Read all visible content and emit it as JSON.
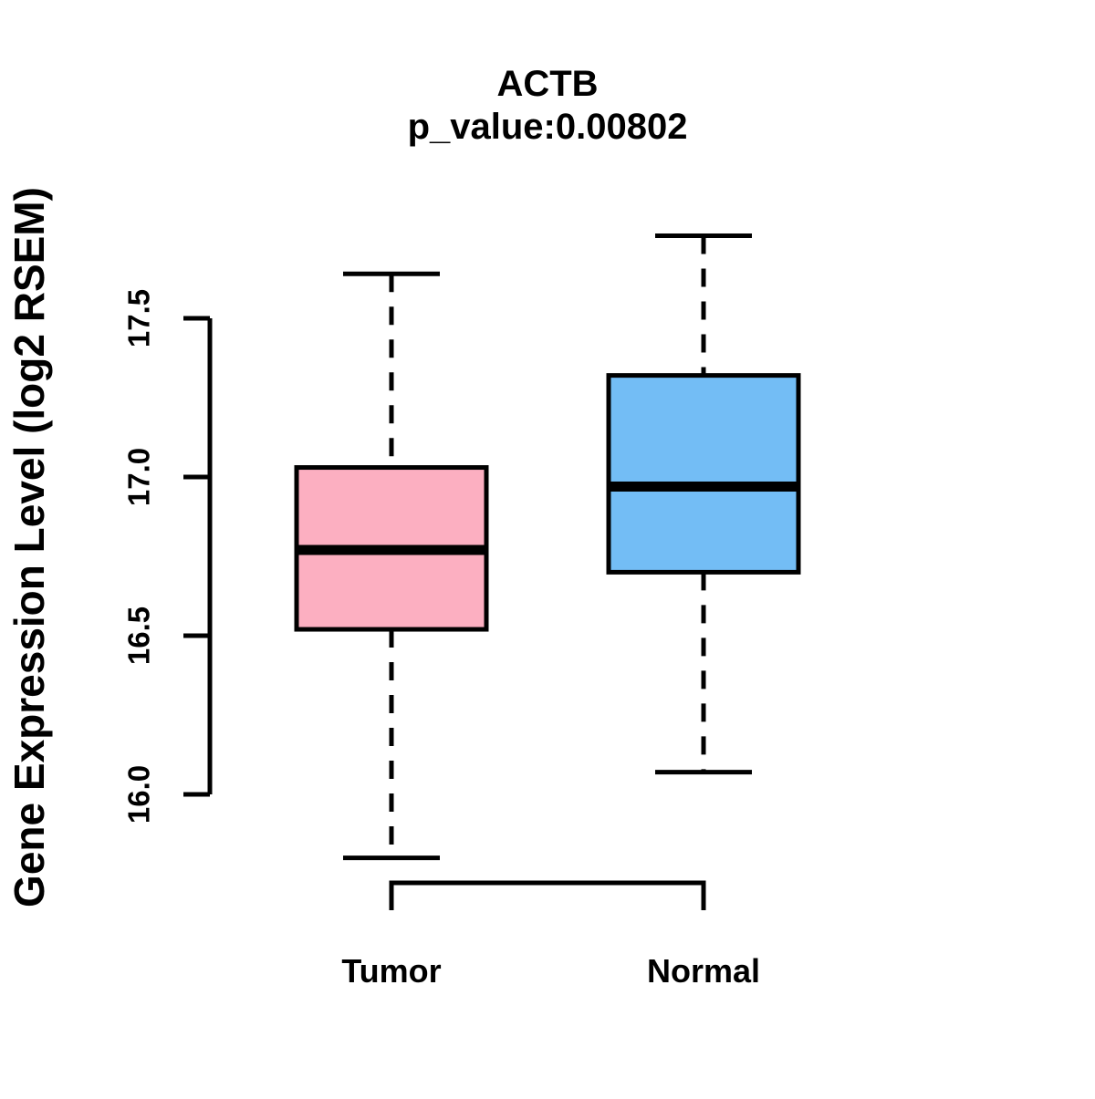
{
  "chart_data": {
    "type": "boxplot",
    "title": "ACTB",
    "subtitle": "p_value:0.00802",
    "ylabel": "Gene Expression Level (log2 RSEM)",
    "xlabel": "",
    "categories": [
      "Tumor",
      "Normal"
    ],
    "axis_range": [
      16.0,
      17.5
    ],
    "yticks": [
      16.0,
      16.5,
      17.0,
      17.5
    ],
    "ytick_labels": [
      "16.0",
      "16.5",
      "17.0",
      "17.5"
    ],
    "grid": "off",
    "legend": "none",
    "series": [
      {
        "name": "Tumor",
        "fill_color": "#FCAFC1",
        "whisker_low": 15.8,
        "q1": 16.52,
        "median": 16.77,
        "q3": 17.03,
        "whisker_high": 17.64
      },
      {
        "name": "Normal",
        "fill_color": "#73BDF5",
        "whisker_low": 16.07,
        "q1": 16.7,
        "median": 16.97,
        "q3": 17.32,
        "whisker_high": 17.76
      }
    ],
    "colors": {
      "stroke": "#000000",
      "background": "#FFFFFF",
      "tumor_fill": "#FCAFC1",
      "normal_fill": "#73BDF5"
    }
  }
}
